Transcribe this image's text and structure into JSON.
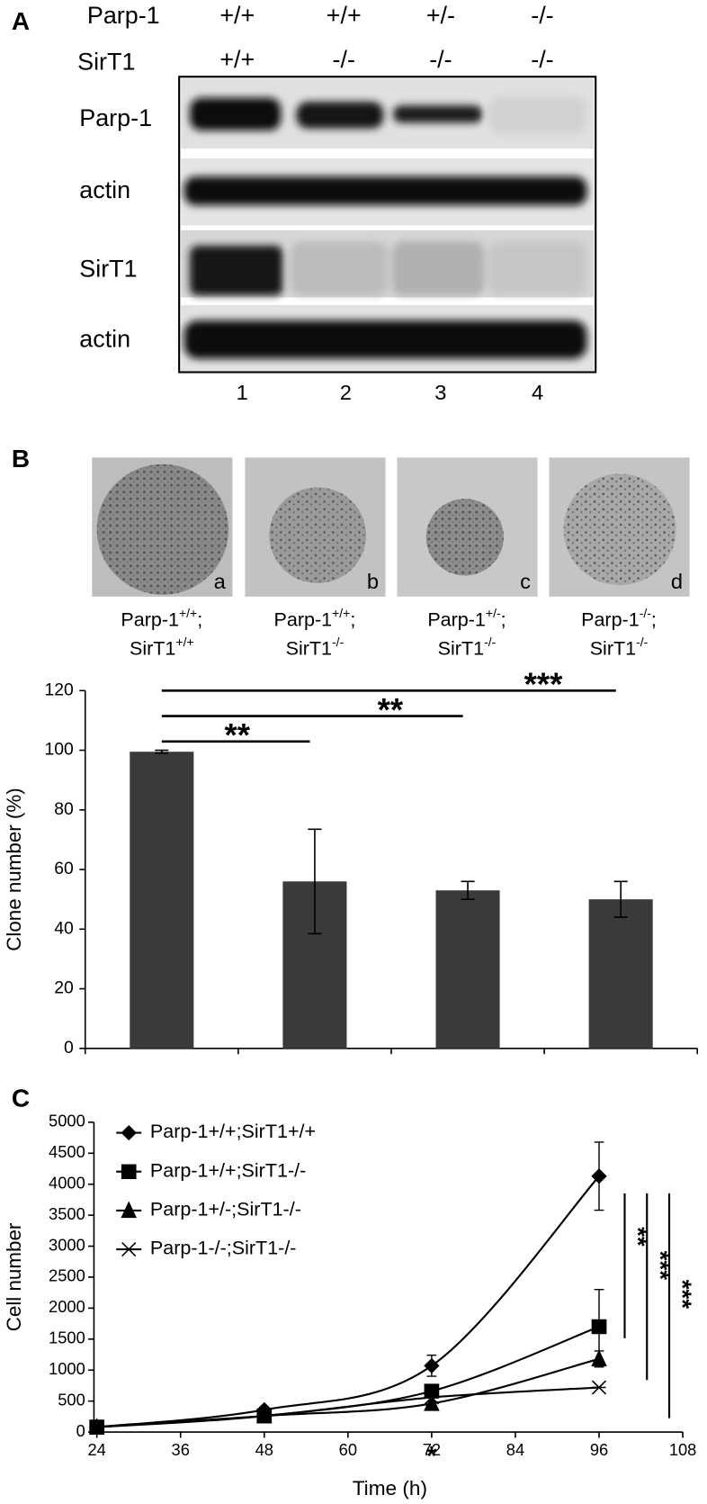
{
  "panel_a": {
    "label": "A",
    "row_labels": [
      "Parp-1",
      "SirT1"
    ],
    "genotypes": [
      {
        "parp1": "+/+",
        "sirt1": "+/+"
      },
      {
        "parp1": "+/+",
        "sirt1": "-/-"
      },
      {
        "parp1": "+/-",
        "sirt1": "-/-"
      },
      {
        "parp1": "-/-",
        "sirt1": "-/-"
      }
    ],
    "blot_labels": [
      "Parp-1",
      "actin",
      "SirT1",
      "actin"
    ],
    "lanes": [
      "1",
      "2",
      "3",
      "4"
    ]
  },
  "panel_b": {
    "label": "B",
    "separator": ";",
    "images": [
      {
        "letter": "a",
        "parp1": "+/+",
        "sirt1": "+/+"
      },
      {
        "letter": "b",
        "parp1": "+/+",
        "sirt1": "-/-"
      },
      {
        "letter": "c",
        "parp1": "+/-",
        "sirt1": "-/-"
      },
      {
        "letter": "d",
        "parp1": "-/-",
        "sirt1": "-/-"
      }
    ]
  },
  "panel_c": {
    "label": "C"
  },
  "chart_data": [
    {
      "type": "bar",
      "ylabel": "Clone number (%)",
      "categories": [
        null,
        null,
        null,
        null
      ],
      "values": [
        99.5,
        56,
        53,
        50
      ],
      "errors": [
        0.5,
        17.5,
        3,
        6
      ],
      "color": "#3a3a3a",
      "ylim": [
        0,
        120
      ],
      "yticks": [
        0,
        20,
        40,
        60,
        80,
        100,
        120
      ],
      "significance": [
        "**",
        "**",
        "***"
      ]
    },
    {
      "type": "line",
      "xlabel": "Time (h)",
      "ylabel": "Cell number",
      "x": [
        24,
        48,
        72,
        96
      ],
      "xlim": [
        24,
        108
      ],
      "xticks": [
        24,
        36,
        48,
        60,
        72,
        84,
        96,
        108
      ],
      "ylim": [
        0,
        5000
      ],
      "yticks": [
        0,
        500,
        1000,
        1500,
        2000,
        2500,
        3000,
        3500,
        4000,
        4500,
        5000
      ],
      "series": [
        {
          "name": "Parp-1+/+;SirT1+/+",
          "marker": "diamond",
          "color": "#000000",
          "values": [
            80,
            360,
            1070,
            4130
          ],
          "errors": [
            null,
            null,
            170,
            550
          ]
        },
        {
          "name": "Parp-1+/+;SirT1-/-",
          "marker": "square",
          "color": "#000000",
          "values": [
            80,
            260,
            660,
            1700
          ],
          "errors": [
            null,
            null,
            100,
            600
          ]
        },
        {
          "name": "Parp-1+/-;SirT1-/-",
          "marker": "triangle",
          "color": "#000000",
          "values": [
            80,
            260,
            460,
            1180
          ],
          "errors": [
            null,
            null,
            null,
            130
          ]
        },
        {
          "name": "Parp-1-/-;SirT1-/-",
          "marker": "asterisk",
          "color": "#000000",
          "values": [
            80,
            260,
            560,
            720
          ],
          "errors": [
            null,
            null,
            null,
            null
          ]
        }
      ],
      "annotations": [
        "*"
      ],
      "significance": [
        "**",
        "***",
        "***"
      ]
    }
  ]
}
